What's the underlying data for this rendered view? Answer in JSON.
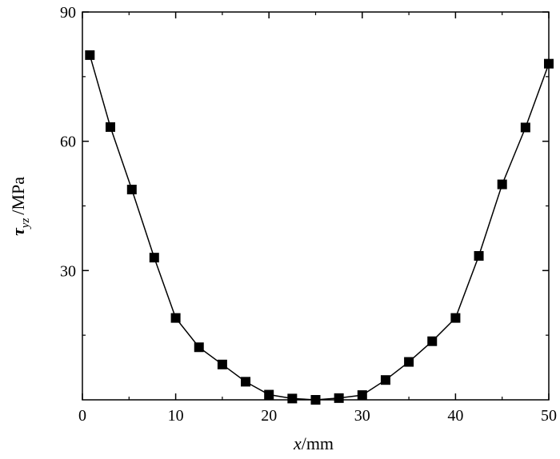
{
  "chart_data": {
    "type": "line",
    "title": "",
    "xlabel_var": "x",
    "xlabel_unit": "/mm",
    "ylabel_var": "τ",
    "ylabel_sub": "yz",
    "ylabel_unit": "/MPa",
    "xlim": [
      0,
      50
    ],
    "ylim": [
      0,
      90
    ],
    "xticks": [
      0,
      10,
      20,
      30,
      40,
      50
    ],
    "yticks": [
      30,
      60,
      90
    ],
    "grid": false,
    "legend": "none",
    "series": [
      {
        "marker": "square",
        "color": "#000000",
        "x": [
          0.8,
          3.0,
          5.3,
          7.7,
          10.0,
          12.5,
          15.0,
          17.5,
          20.0,
          22.5,
          25.0,
          27.5,
          30.0,
          32.5,
          35.0,
          37.5,
          40.0,
          42.5,
          45.0,
          47.5,
          50.0
        ],
        "y": [
          80.0,
          63.3,
          48.8,
          33.0,
          19.0,
          12.2,
          8.2,
          4.2,
          1.2,
          0.3,
          0.0,
          0.4,
          1.1,
          4.6,
          8.8,
          13.6,
          19.0,
          33.4,
          50.0,
          63.2,
          78.0
        ]
      }
    ]
  }
}
